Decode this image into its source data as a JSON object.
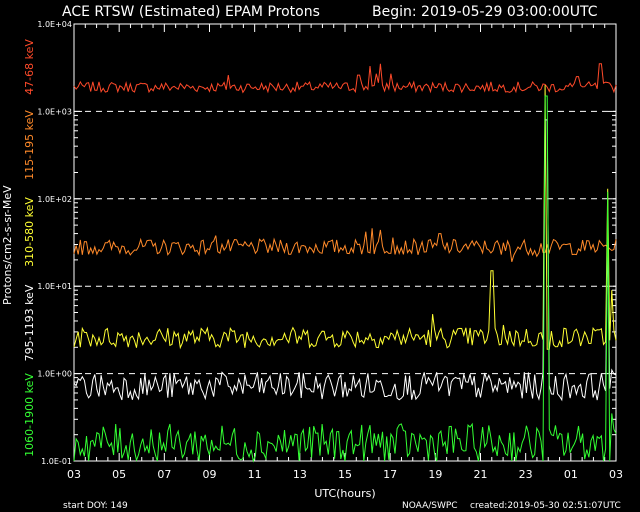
{
  "header": {
    "title": "ACE RTSW (Estimated) EPAM Protons",
    "begin": "Begin: 2019-05-29 03:00:00UTC"
  },
  "footer": {
    "start_doy": "start DOY:  149",
    "agency": "NOAA/SWPC",
    "created": "created:2019-05-30 02:51:07UTC"
  },
  "y_label_units": "Protons/cm2-s-sr-MeV",
  "chart_data": {
    "type": "line",
    "title": "ACE RTSW (Estimated) EPAM Protons",
    "xlabel": "UTC(hours)",
    "ylabel": "Protons/cm2-s-sr-MeV",
    "yscale": "log",
    "ylim": [
      0.1,
      10000
    ],
    "xlim_hours": [
      0,
      24
    ],
    "x_ticks": [
      "03",
      "05",
      "07",
      "09",
      "11",
      "13",
      "15",
      "17",
      "19",
      "21",
      "23",
      "01",
      "03"
    ],
    "y_ticks": [
      "1.0E-01",
      "1.0E+00",
      "1.0E+01",
      "1.0E+02",
      "1.0E+03",
      "1.0E+04"
    ],
    "grid": "dashed horizontal at 1.0E+00, 1.0E+01, 1.0E+02, 1.0E+03",
    "series": [
      {
        "name": "47-68 keV",
        "color": "#ff4a2a",
        "base": 1900,
        "noise": 0.06,
        "events": [
          [
            6.8,
            2600
          ],
          [
            12.6,
            2600
          ],
          [
            13.1,
            3300
          ],
          [
            13.4,
            2700
          ],
          [
            13.6,
            3500
          ],
          [
            14.0,
            2700
          ],
          [
            22.3,
            2500
          ],
          [
            23.3,
            3500
          ]
        ]
      },
      {
        "name": "115-195 keV",
        "color": "#ff8a2a",
        "base": 28,
        "noise": 0.09,
        "events": [
          [
            6.3,
            38
          ],
          [
            12.9,
            42
          ],
          [
            13.2,
            46
          ],
          [
            13.6,
            44
          ],
          [
            14.1,
            36
          ],
          [
            16.2,
            40
          ],
          [
            18.9,
            23
          ],
          [
            19.4,
            19
          ],
          [
            20.5,
            22
          ]
        ]
      },
      {
        "name": "310-580 keV",
        "color": "#ffff33",
        "base": 2.6,
        "noise": 0.12,
        "events": [
          [
            15.9,
            4.8
          ],
          [
            18.5,
            15
          ],
          [
            19.0,
            3.6
          ],
          [
            20.9,
            2000
          ],
          [
            21.0,
            1.9
          ],
          [
            23.6,
            130
          ],
          [
            23.8,
            9
          ],
          [
            24.0,
            2.4
          ]
        ]
      },
      {
        "name": "795-1193 keV",
        "color": "#ffffff",
        "base": 0.72,
        "noise": 0.16,
        "events": [
          [
            15.7,
            0.9
          ],
          [
            20.9,
            800
          ],
          [
            23.6,
            40
          ],
          [
            23.8,
            1.1
          ]
        ]
      },
      {
        "name": "1060-1900 keV",
        "color": "#33ff33",
        "base": 0.16,
        "noise": 0.22,
        "events": [
          [
            20.9,
            1500
          ],
          [
            23.6,
            120
          ],
          [
            23.8,
            0.35
          ]
        ]
      }
    ]
  }
}
